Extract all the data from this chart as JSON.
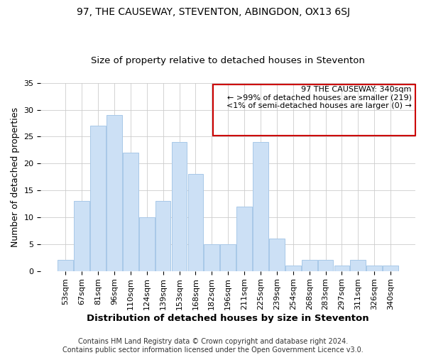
{
  "title": "97, THE CAUSEWAY, STEVENTON, ABINGDON, OX13 6SJ",
  "subtitle": "Size of property relative to detached houses in Steventon",
  "xlabel": "Distribution of detached houses by size in Steventon",
  "ylabel": "Number of detached properties",
  "categories": [
    "53sqm",
    "67sqm",
    "81sqm",
    "96sqm",
    "110sqm",
    "124sqm",
    "139sqm",
    "153sqm",
    "168sqm",
    "182sqm",
    "196sqm",
    "211sqm",
    "225sqm",
    "239sqm",
    "254sqm",
    "268sqm",
    "283sqm",
    "297sqm",
    "311sqm",
    "326sqm",
    "340sqm"
  ],
  "values": [
    2,
    13,
    27,
    29,
    22,
    10,
    13,
    24,
    18,
    5,
    5,
    12,
    24,
    6,
    1,
    2,
    2,
    1,
    2,
    1,
    1
  ],
  "bar_color": "#cce0f5",
  "bar_edge_color": "#a8c8e8",
  "highlight_index": 20,
  "highlight_bar_edge_color": "#cc0000",
  "box_text_lines": [
    "97 THE CAUSEWAY: 340sqm",
    "← >99% of detached houses are smaller (219)",
    "<1% of semi-detached houses are larger (0) →"
  ],
  "box_color": "#ffffff",
  "box_edge_color": "#cc0000",
  "ylim": [
    0,
    35
  ],
  "yticks": [
    0,
    5,
    10,
    15,
    20,
    25,
    30,
    35
  ],
  "background_color": "#ffffff",
  "footer_line1": "Contains HM Land Registry data © Crown copyright and database right 2024.",
  "footer_line2": "Contains public sector information licensed under the Open Government Licence v3.0.",
  "title_fontsize": 10,
  "subtitle_fontsize": 9.5,
  "tick_fontsize": 8,
  "ylabel_fontsize": 9,
  "xlabel_fontsize": 9.5,
  "footer_fontsize": 7
}
